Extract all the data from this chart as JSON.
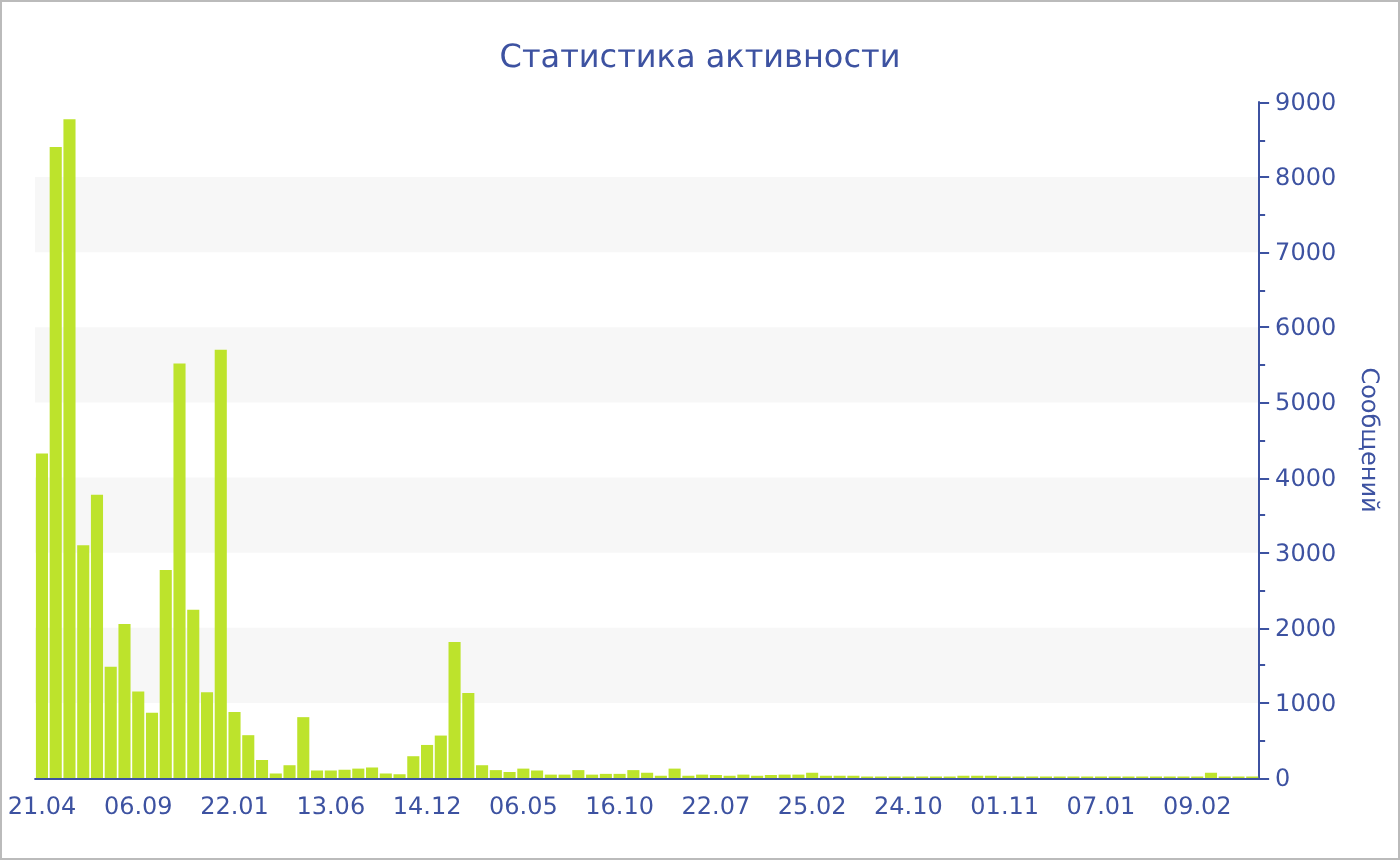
{
  "chart_data": {
    "type": "bar",
    "title": "Статистика активности",
    "ylabel": "Сообщений",
    "categories": [
      "21.04",
      null,
      null,
      null,
      null,
      null,
      null,
      "06.09",
      null,
      null,
      null,
      null,
      null,
      null,
      "22.01",
      null,
      null,
      null,
      null,
      null,
      null,
      "13.06",
      null,
      null,
      null,
      null,
      null,
      null,
      "14.12",
      null,
      null,
      null,
      null,
      null,
      null,
      "06.05",
      null,
      null,
      null,
      null,
      null,
      null,
      "16.10",
      null,
      null,
      null,
      null,
      null,
      null,
      "22.07",
      null,
      null,
      null,
      null,
      null,
      null,
      "25.02",
      null,
      null,
      null,
      null,
      null,
      null,
      "24.10",
      null,
      null,
      null,
      null,
      null,
      null,
      "01.11",
      null,
      null,
      null,
      null,
      null,
      null,
      "07.01",
      null,
      null,
      null,
      null,
      null,
      null,
      "09.02",
      null,
      null,
      null,
      null
    ],
    "values": [
      4320,
      8400,
      8770,
      3100,
      3770,
      1480,
      2050,
      1150,
      870,
      2770,
      5520,
      2240,
      1140,
      5700,
      880,
      570,
      240,
      60,
      170,
      810,
      100,
      100,
      110,
      125,
      140,
      60,
      50,
      290,
      440,
      565,
      1810,
      1130,
      170,
      105,
      80,
      125,
      100,
      45,
      45,
      105,
      45,
      55,
      55,
      105,
      70,
      30,
      125,
      30,
      45,
      40,
      30,
      45,
      30,
      40,
      45,
      45,
      70,
      30,
      30,
      30,
      20,
      20,
      20,
      20,
      20,
      20,
      20,
      30,
      30,
      30,
      20,
      20,
      20,
      20,
      20,
      20,
      20,
      20,
      20,
      20,
      20,
      20,
      20,
      20,
      20,
      70,
      20,
      20,
      20
    ],
    "color": "#bde32c",
    "ylim": [
      0,
      9000
    ],
    "yticks": [
      0,
      1000,
      2000,
      3000,
      4000,
      5000,
      6000,
      7000,
      8000,
      9000
    ]
  }
}
